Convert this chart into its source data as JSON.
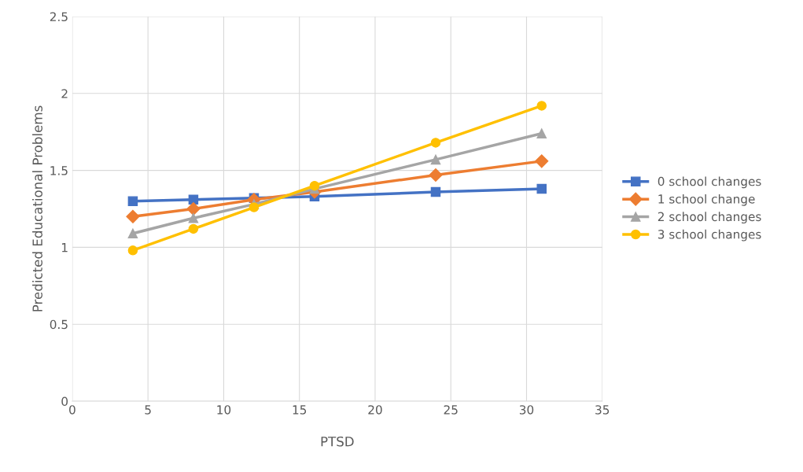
{
  "chart_data": {
    "type": "line",
    "xlabel": "PTSD",
    "ylabel": "Predicted Educational Problems",
    "x": [
      4,
      8,
      12,
      16,
      24,
      31
    ],
    "series": [
      {
        "name": "0 school changes",
        "color": "#4472c4",
        "marker": "square",
        "values": [
          1.3,
          1.31,
          1.32,
          1.33,
          1.36,
          1.38
        ]
      },
      {
        "name": "1 school change",
        "color": "#ed7d31",
        "marker": "diamond",
        "values": [
          1.2,
          1.25,
          1.31,
          1.36,
          1.47,
          1.56
        ]
      },
      {
        "name": "2 school changes",
        "color": "#a5a5a5",
        "marker": "triangle",
        "values": [
          1.09,
          1.19,
          1.28,
          1.38,
          1.57,
          1.74
        ]
      },
      {
        "name": "3 school changes",
        "color": "#ffc000",
        "marker": "circle",
        "values": [
          0.98,
          1.12,
          1.26,
          1.4,
          1.68,
          1.92
        ]
      }
    ],
    "xlim": [
      0,
      35
    ],
    "xticks": [
      0,
      5,
      10,
      15,
      20,
      25,
      30,
      35
    ],
    "ylim": [
      0,
      2.5
    ],
    "yticks": [
      0,
      0.5,
      1,
      1.5,
      2,
      2.5
    ],
    "grid": true,
    "legend": "right",
    "line_style": "solid"
  }
}
